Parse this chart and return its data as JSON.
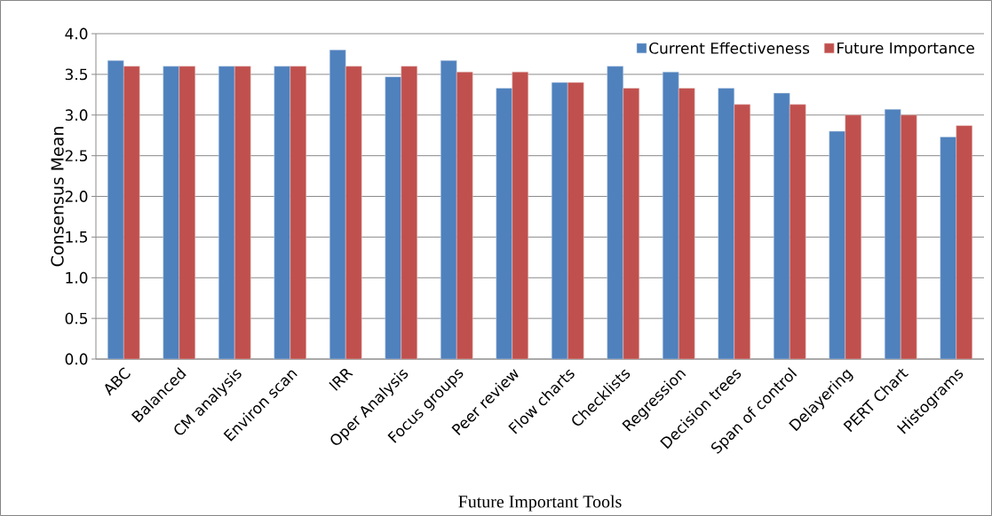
{
  "chart_data": {
    "type": "bar",
    "xlabel": "Future Important Tools",
    "ylabel": "Consensus Mean",
    "categories": [
      "ABC",
      "Balanced",
      "CM analysis",
      "Environ scan",
      "IRR",
      "Oper Analysis",
      "Focus groups",
      "Peer review",
      "Flow charts",
      "Checklists",
      "Regression",
      "Decision trees",
      "Span of control",
      "Delayering",
      "PERT Chart",
      "Histograms"
    ],
    "series": [
      {
        "name": "Current Effectiveness",
        "color": "#4f81bd",
        "values": [
          3.67,
          3.6,
          3.6,
          3.6,
          3.8,
          3.47,
          3.67,
          3.33,
          3.4,
          3.6,
          3.53,
          3.33,
          3.27,
          2.8,
          3.07,
          2.73
        ]
      },
      {
        "name": "Future Importance",
        "color": "#c0504d",
        "values": [
          3.6,
          3.6,
          3.6,
          3.6,
          3.6,
          3.6,
          3.53,
          3.53,
          3.4,
          3.33,
          3.33,
          3.13,
          3.13,
          3.0,
          3.0,
          2.87
        ]
      }
    ],
    "ylim": [
      0,
      4
    ],
    "yticks": [
      {
        "value": 0,
        "label": "0.0"
      },
      {
        "value": 0.5,
        "label": "0.5"
      },
      {
        "value": 1,
        "label": "1.0"
      },
      {
        "value": 1.5,
        "label": "1.5"
      },
      {
        "value": 2,
        "label": "2.0"
      },
      {
        "value": 2.5,
        "label": "2.5"
      },
      {
        "value": 3,
        "label": "3.0"
      },
      {
        "value": 3.5,
        "label": "3.5"
      },
      {
        "value": 4,
        "label": "4.0"
      }
    ],
    "grid": "y",
    "legend": "top right"
  }
}
